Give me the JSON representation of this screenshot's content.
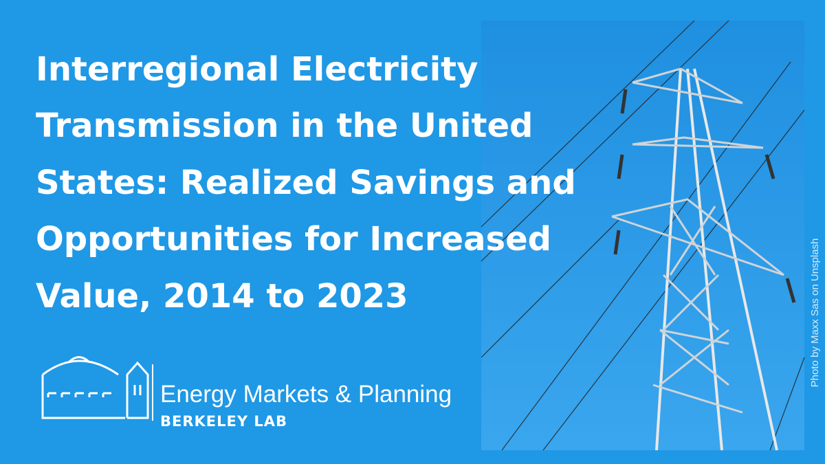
{
  "header": {
    "title_lines": [
      "Interregional Electricity",
      "Transmission in the United",
      "States: Realized Savings and",
      "Opportunities for Increased",
      "Value, 2014 to 2023"
    ]
  },
  "logo": {
    "name": "Energy Markets & Planning",
    "org": "BERKELEY LAB"
  },
  "photo": {
    "credit": "Photo by Maxx Sas on Unsplash"
  }
}
